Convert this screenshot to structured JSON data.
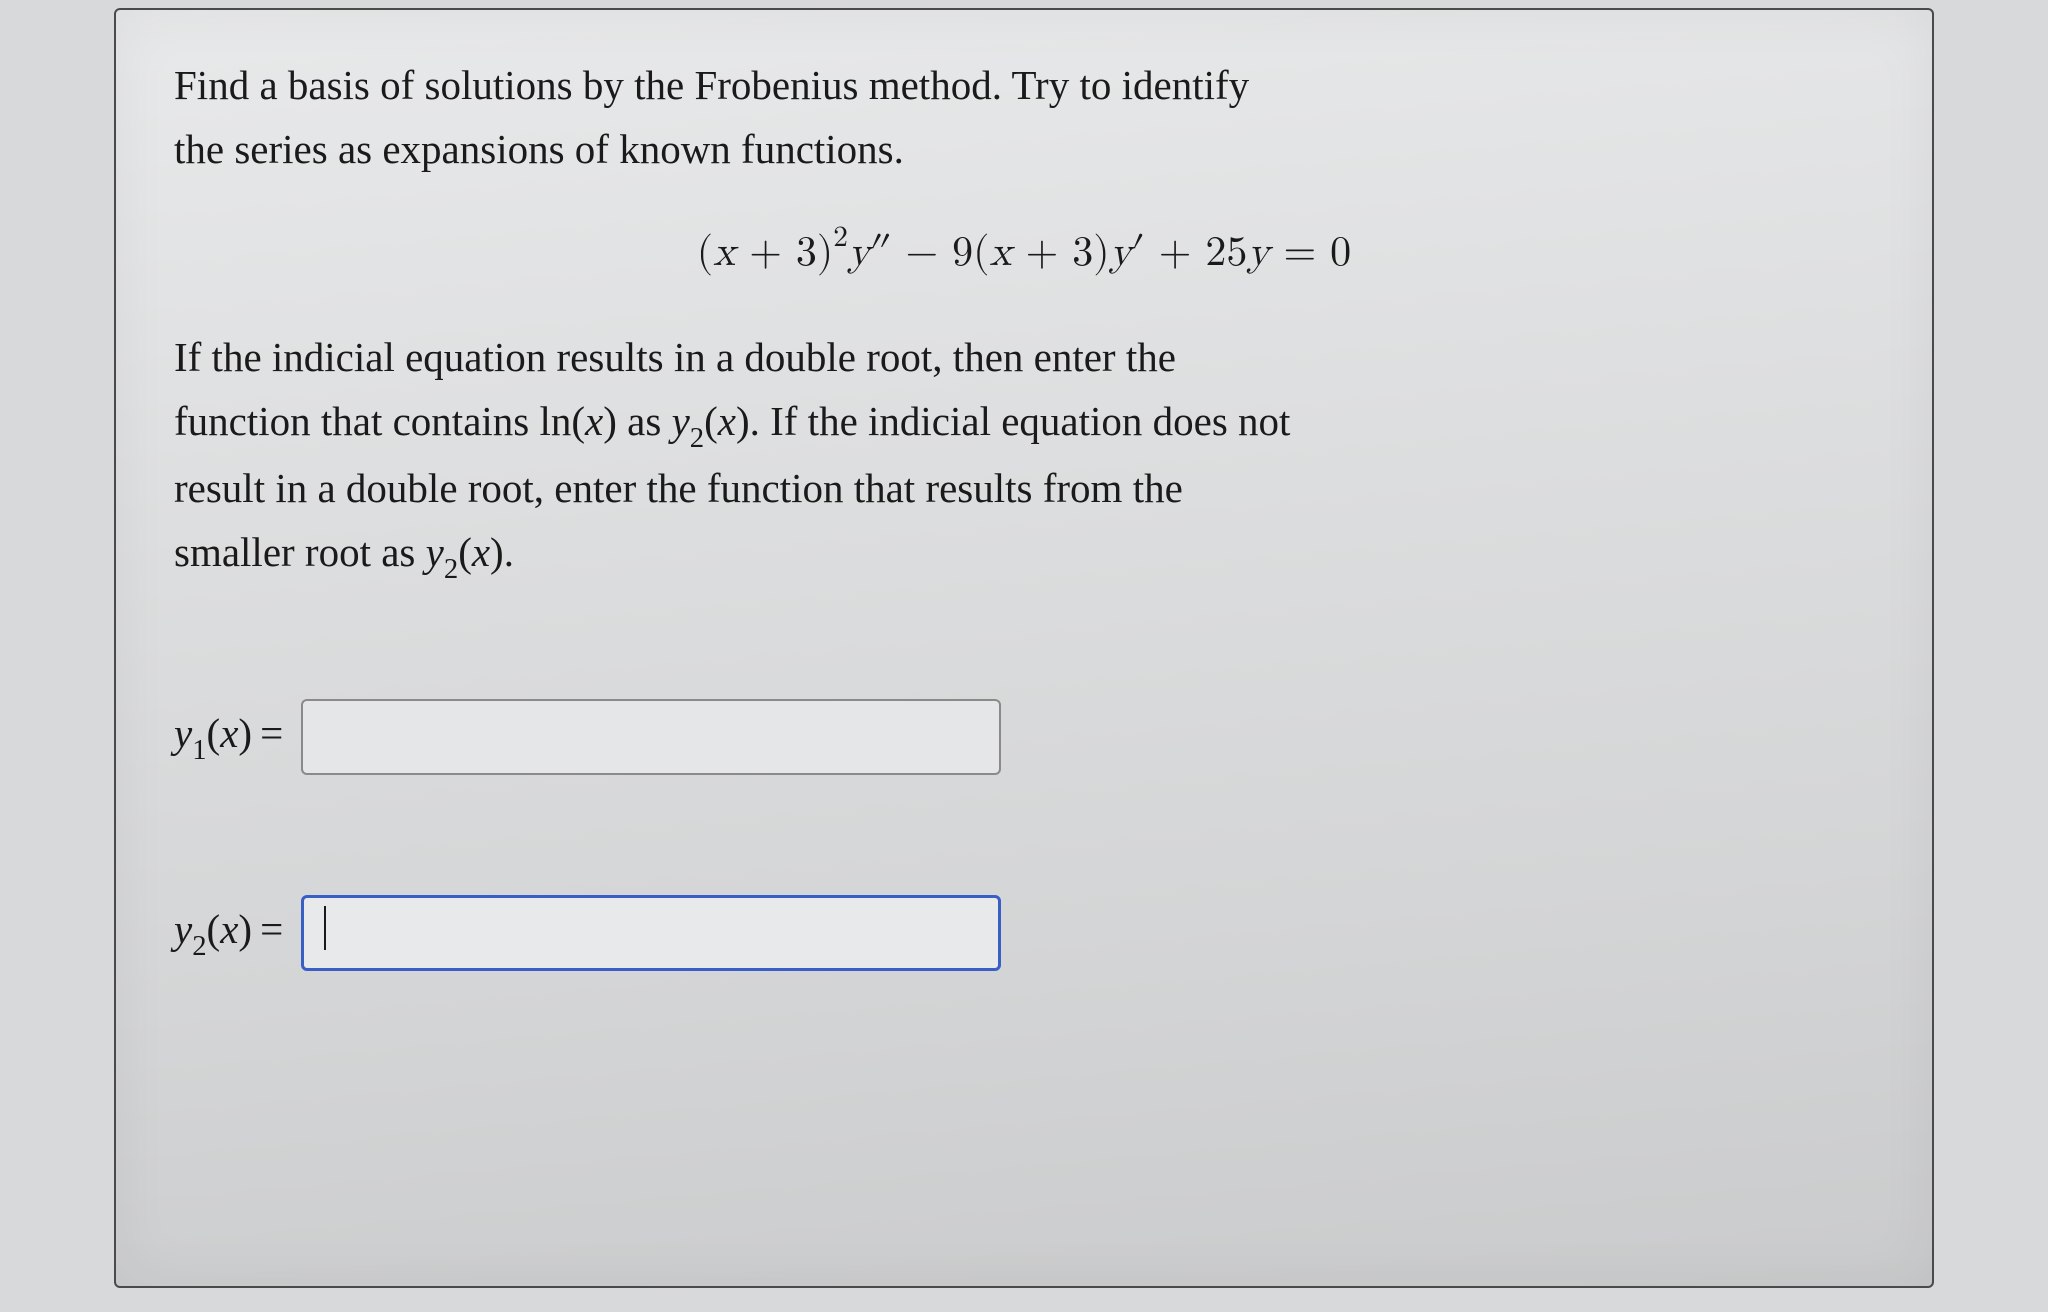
{
  "card": {
    "background_colors": [
      "#e8e9ea",
      "#dcddde",
      "#d4d5d6",
      "#cacbcc"
    ],
    "border_color": "#4a4a4a",
    "font_family": "Georgia serif",
    "text_color": "#1a1a1a"
  },
  "prompt": {
    "line1": "Find a basis of solutions by the Frobenius method. Try to identify",
    "line2": "the series as expansions of known functions.",
    "fontsize": 41
  },
  "equation": {
    "latex": "(x + 3)^2 y'' - 9(x + 3)y' + 25y = 0",
    "display_parts": {
      "p1": "(",
      "p2": "x",
      "p3": " + 3)",
      "sup": "2",
      "p4": "y",
      "p5": "″",
      "p6": " − 9(",
      "p7": "x",
      "p8": " + 3)",
      "p9": "y",
      "p10": "′",
      "p11": " + 25",
      "p12": "y",
      "p13": " = 0"
    },
    "fontsize": 42
  },
  "instruction": {
    "text_parts": {
      "t1": "If the indicial equation results in a double root, then enter the",
      "t2": "function that contains ln(",
      "t2b": "x",
      "t2c": ") as ",
      "y2a": "y",
      "y2a_sub": "2",
      "t2d": "(",
      "t2e": "x",
      "t2f": "). If the indicial equation does not",
      "t3": "result in a double root, enter the function that results from the",
      "t4": "smaller root as ",
      "y2b": "y",
      "y2b_sub": "2",
      "t4b": "(",
      "t4c": "x",
      "t4d": ")."
    },
    "fontsize": 41
  },
  "answers": {
    "y1": {
      "label_y": "y",
      "label_sub": "1",
      "label_paren_open": "(",
      "label_x": "x",
      "label_paren_close": ")",
      "label_eq": "=",
      "value": "",
      "input_border": "#8a8a8a",
      "input_bg": "#e5e6e7",
      "active": false
    },
    "y2": {
      "label_y": "y",
      "label_sub": "2",
      "label_paren_open": "(",
      "label_x": "x",
      "label_paren_close": ")",
      "label_eq": "=",
      "value": "",
      "input_border": "#3a5fc4",
      "input_bg": "#e8e9ea",
      "active": true
    },
    "input_width": 700,
    "input_height": 76
  }
}
